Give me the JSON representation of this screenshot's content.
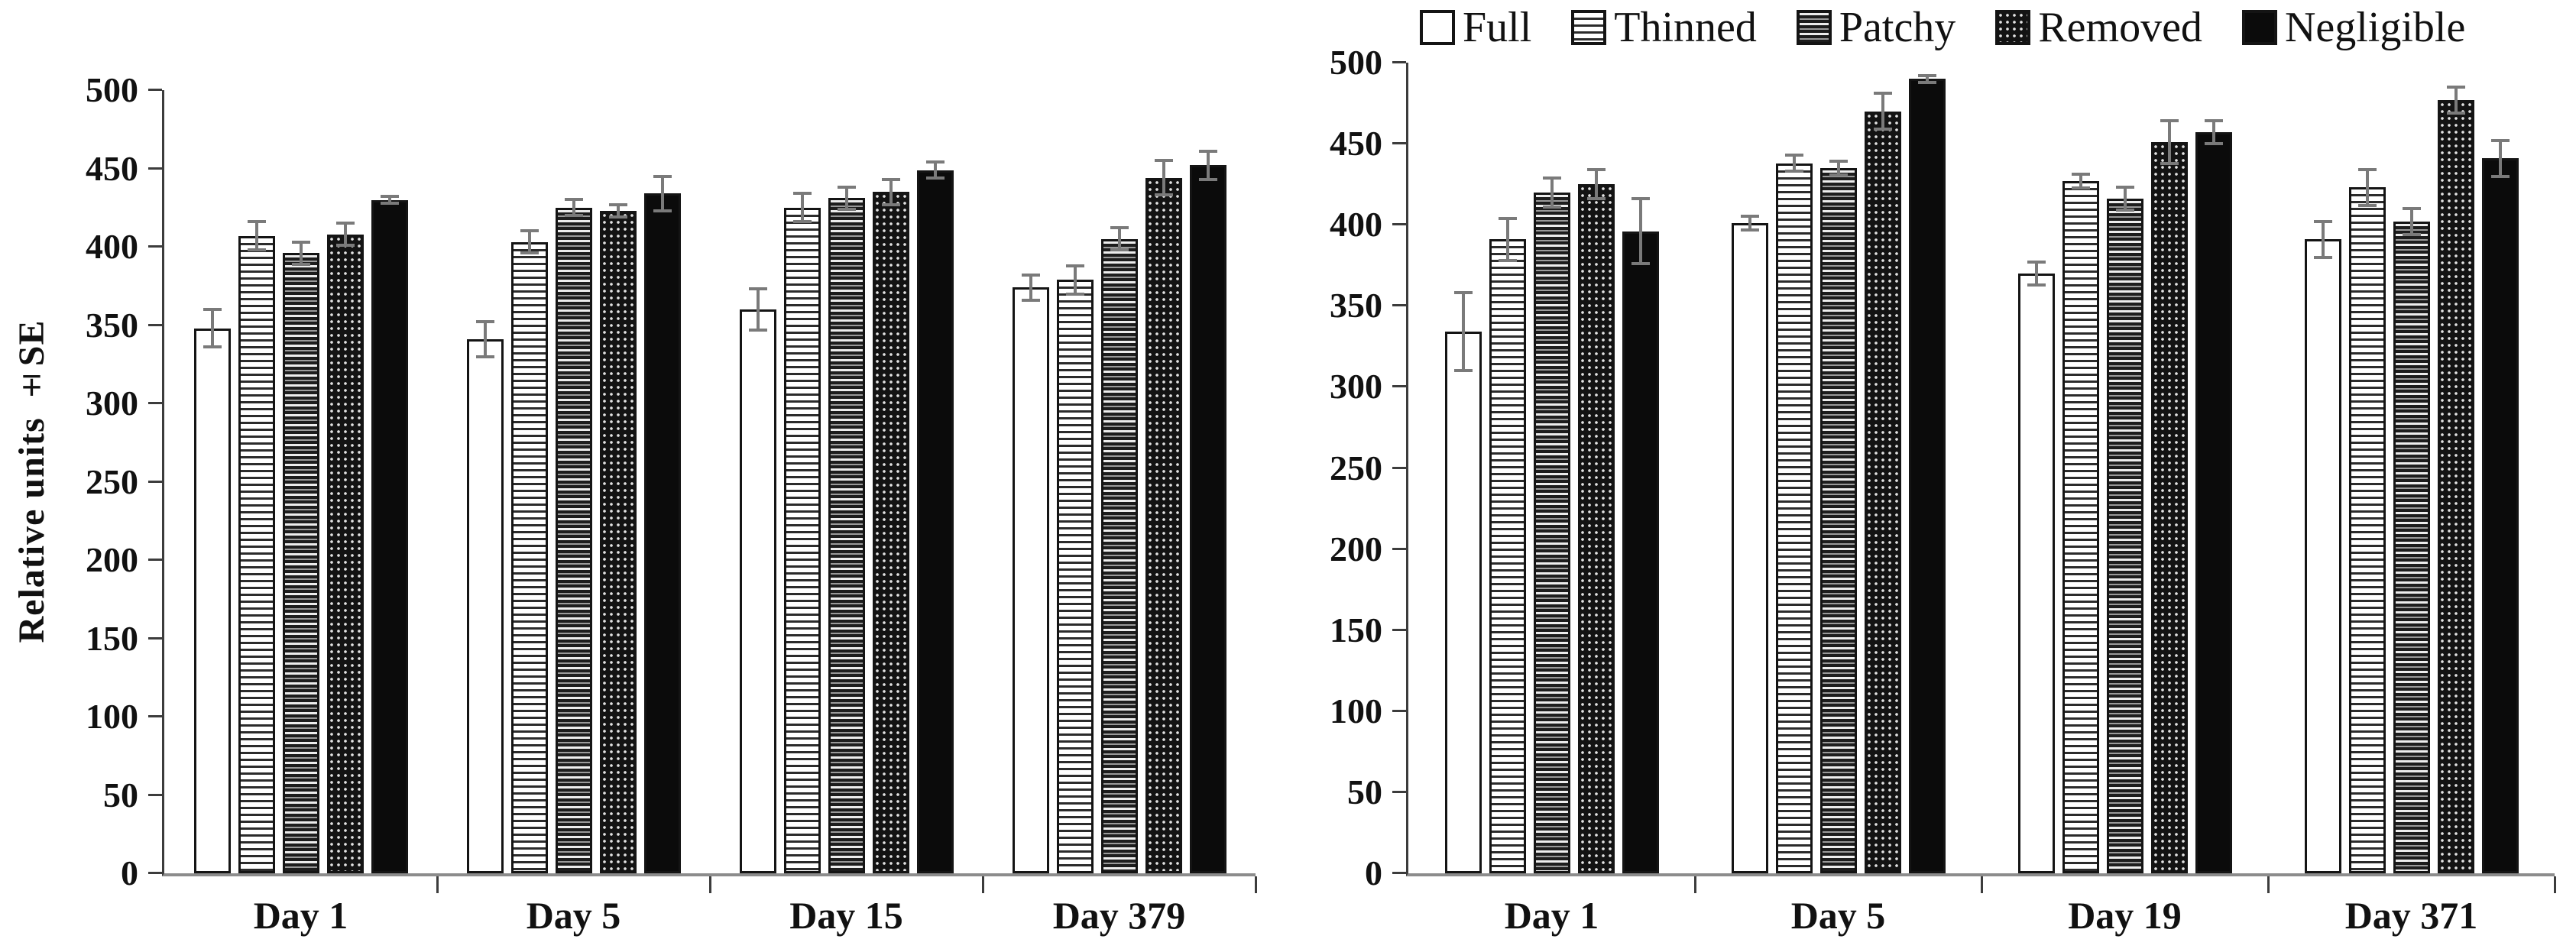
{
  "figure": {
    "ylabel": "Relative units ±SE"
  },
  "legend": {
    "position": "top-right",
    "items": [
      {
        "label": "Full",
        "pattern": "full"
      },
      {
        "label": "Thinned",
        "pattern": "thinned"
      },
      {
        "label": "Patchy",
        "pattern": "patchy"
      },
      {
        "label": "Removed",
        "pattern": "removed"
      },
      {
        "label": "Negligible",
        "pattern": "negligible"
      }
    ]
  },
  "colors": {
    "bar_fill_dark": "#0b0b0b",
    "bar_stroke": "#141414",
    "error_bar": "#7a7a7a",
    "axis_line": "#3c3c3c",
    "baseline": "#8c8c8c",
    "text": "#111111",
    "background": "#ffffff"
  },
  "chart_data": [
    {
      "type": "bar",
      "title": "",
      "xlabel": "",
      "ylabel": "Relative units ±SE",
      "ylim": [
        0,
        500
      ],
      "ytick_step": 50,
      "ytick_labels": [
        "0",
        "50",
        "100",
        "150",
        "200",
        "250",
        "300",
        "350",
        "400",
        "450",
        "500"
      ],
      "grid": false,
      "error_bars": true,
      "categories": [
        "Day 1",
        "Day 5",
        "Day 15",
        "Day 379"
      ],
      "series": [
        {
          "name": "Full",
          "pattern": "full",
          "values": [
            348,
            341,
            360,
            374
          ],
          "errors": [
            13,
            12,
            14,
            9
          ]
        },
        {
          "name": "Thinned",
          "pattern": "thinned",
          "values": [
            407,
            403,
            425,
            379
          ],
          "errors": [
            10,
            8,
            10,
            10
          ]
        },
        {
          "name": "Patchy",
          "pattern": "patchy",
          "values": [
            396,
            425,
            431,
            405
          ],
          "errors": [
            8,
            6,
            8,
            8
          ]
        },
        {
          "name": "Removed",
          "pattern": "removed",
          "values": [
            408,
            423,
            435,
            444
          ],
          "errors": [
            8,
            5,
            9,
            12
          ]
        },
        {
          "name": "Negligible",
          "pattern": "negligible",
          "values": [
            430,
            434,
            449,
            452
          ],
          "errors": [
            3,
            12,
            6,
            10
          ]
        }
      ]
    },
    {
      "type": "bar",
      "title": "",
      "xlabel": "",
      "ylabel": "",
      "ylim": [
        0,
        500
      ],
      "ytick_step": 50,
      "ytick_labels": [
        "0",
        "50",
        "100",
        "150",
        "200",
        "250",
        "300",
        "350",
        "400",
        "450",
        "500"
      ],
      "grid": false,
      "error_bars": true,
      "categories": [
        "Day 1",
        "Day 5",
        "Day 19",
        "Day 371"
      ],
      "series": [
        {
          "name": "Full",
          "pattern": "full",
          "values": [
            334,
            401,
            370,
            391
          ],
          "errors": [
            25,
            5,
            8,
            12
          ]
        },
        {
          "name": "Thinned",
          "pattern": "thinned",
          "values": [
            391,
            438,
            427,
            423
          ],
          "errors": [
            14,
            6,
            5,
            12
          ]
        },
        {
          "name": "Patchy",
          "pattern": "patchy",
          "values": [
            420,
            435,
            416,
            402
          ],
          "errors": [
            10,
            5,
            8,
            9
          ]
        },
        {
          "name": "Removed",
          "pattern": "removed",
          "values": [
            425,
            470,
            451,
            477
          ],
          "errors": [
            10,
            12,
            14,
            9
          ]
        },
        {
          "name": "Negligible",
          "pattern": "negligible",
          "values": [
            396,
            490,
            457,
            441
          ],
          "errors": [
            21,
            3,
            8,
            12
          ]
        }
      ]
    }
  ]
}
